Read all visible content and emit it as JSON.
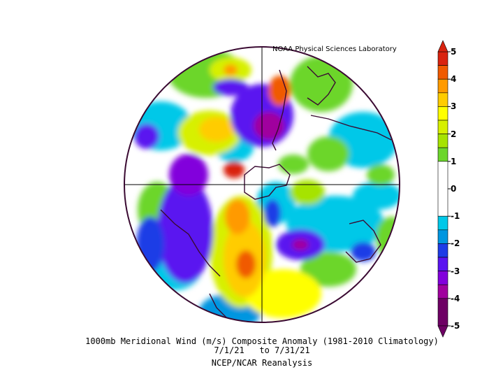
{
  "credit": "NOAA Physical Sciences Laboratory",
  "title_line1": "1000mb Meridional Wind (m/s) Composite Anomaly (1981-2010 Climatology)",
  "title_line2": "7/1/21   to 7/31/21",
  "title_line3": "NCEP/NCAR Reanalysis",
  "colorbar": {
    "ticks": [
      "5",
      "4",
      "3",
      "2",
      "1",
      "0",
      "-1",
      "-2",
      "-3",
      "-4",
      "-5"
    ],
    "levels": [
      {
        "from": 4.5,
        "to": 5,
        "color": "#d9230f"
      },
      {
        "from": 4,
        "to": 4.5,
        "color": "#f05a00"
      },
      {
        "from": 3.5,
        "to": 4,
        "color": "#ff9a00"
      },
      {
        "from": 3,
        "to": 3.5,
        "color": "#ffcc00"
      },
      {
        "from": 2.5,
        "to": 3,
        "color": "#ffff00"
      },
      {
        "from": 2,
        "to": 2.5,
        "color": "#d7f000"
      },
      {
        "from": 1.5,
        "to": 2,
        "color": "#a6e300"
      },
      {
        "from": 1,
        "to": 1.5,
        "color": "#6cd62c"
      },
      {
        "from": -1,
        "to": 1,
        "color": "#ffffff"
      },
      {
        "from": -1.5,
        "to": -1,
        "color": "#00c8e8"
      },
      {
        "from": -2,
        "to": -1.5,
        "color": "#0096e0"
      },
      {
        "from": -2.5,
        "to": -2,
        "color": "#1e3ce6"
      },
      {
        "from": -3,
        "to": -2.5,
        "color": "#5a14f0"
      },
      {
        "from": -3.5,
        "to": -3,
        "color": "#8200dc"
      },
      {
        "from": -4,
        "to": -3.5,
        "color": "#a0009e"
      },
      {
        "from": -5,
        "to": -4,
        "color": "#6e0064"
      }
    ]
  },
  "map_colors": {
    "border": "#3a0a32",
    "coast": "#3a0a32",
    "grid": "#000000"
  }
}
